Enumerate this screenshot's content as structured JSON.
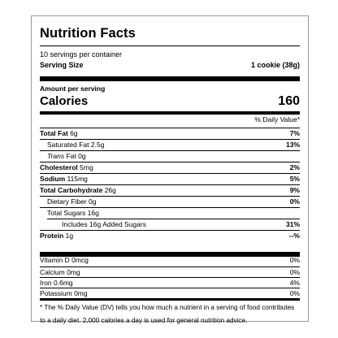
{
  "title": "Nutrition Facts",
  "servings_per_container": "10 servings per container",
  "serving_size_label": "Serving Size",
  "serving_size_value": "1 cookie (38g)",
  "amount_per_serving": "Amount per serving",
  "calories_label": "Calories",
  "calories_value": "160",
  "daily_value_header": "% Daily Value*",
  "nutrients": [
    {
      "name": "Total Fat",
      "amount": "6g",
      "dv": "7%"
    },
    {
      "name": "Saturated Fat",
      "amount": "2.5g",
      "dv": "13%"
    },
    {
      "name": "Trans",
      "amount": "Fat 0g",
      "dv": ""
    },
    {
      "name": "Cholesterol",
      "amount": "5mg",
      "dv": "2%"
    },
    {
      "name": "Sodium",
      "amount": "115mg",
      "dv": "5%"
    },
    {
      "name": "Total Carbohydrate",
      "amount": "26g",
      "dv": "9%"
    },
    {
      "name": "Dietary Fiber",
      "amount": "0g",
      "dv": "0%"
    },
    {
      "name": "Total Sugars",
      "amount": "16g",
      "dv": ""
    },
    {
      "name": "Includes 16g Added Sugars",
      "amount": "",
      "dv": "31%"
    },
    {
      "name": "Protein",
      "amount": "1g",
      "dv": "--%"
    }
  ],
  "micronutrients": [
    {
      "name": "Vitamin D",
      "amount": "0mcg",
      "dv": "0%"
    },
    {
      "name": "Calcium",
      "amount": "0mg",
      "dv": "0%"
    },
    {
      "name": "Iron",
      "amount": "0.6mg",
      "dv": "4%"
    },
    {
      "name": "Potassium",
      "amount": "0mg",
      "dv": "0%"
    }
  ],
  "footnote": "* The % Daily Value (DV) tells you how much a nutrient in a serving of food contributes to a daily diet. 2,000 calories a day is used for general nutrition advice."
}
